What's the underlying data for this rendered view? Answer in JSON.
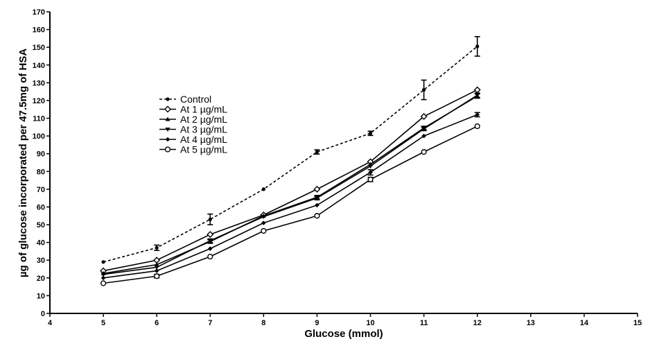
{
  "chart_data": {
    "type": "line",
    "title": "",
    "xlabel": "Glucose (mmol)",
    "ylabel": "µg of glucose incorporated per 47.5mg of HSA",
    "xlim": [
      4,
      15
    ],
    "ylim": [
      0,
      170
    ],
    "xticks": [
      4,
      5,
      6,
      7,
      8,
      9,
      10,
      11,
      12,
      13,
      14,
      15
    ],
    "yticks": [
      0,
      10,
      20,
      30,
      40,
      50,
      60,
      70,
      80,
      90,
      100,
      110,
      120,
      130,
      140,
      150,
      160,
      170
    ],
    "grid": false,
    "legend_position": "upper-left",
    "x": [
      5,
      6,
      7,
      8,
      9,
      10,
      11,
      12
    ],
    "series": [
      {
        "name": "Control",
        "marker": "dot",
        "line": "dashed",
        "values": [
          29,
          37,
          53,
          70,
          91,
          101.5,
          126,
          150.5
        ],
        "errors": [
          0.5,
          1.5,
          3,
          0.5,
          1.2,
          1.2,
          5.5,
          5.5
        ]
      },
      {
        "name": "At 1 µg/mL",
        "marker": "diamond-open",
        "line": "solid",
        "values": [
          24,
          30,
          44.5,
          55.5,
          70,
          85.5,
          111,
          126
        ],
        "errors": [
          0.5,
          0.5,
          0.5,
          0.5,
          0.5,
          0.5,
          0.5,
          0.5
        ]
      },
      {
        "name": "At 2 µg/mL",
        "marker": "triangle-up",
        "line": "solid",
        "values": [
          22.5,
          27.5,
          40.5,
          55,
          65.5,
          84,
          104.5,
          122.5
        ],
        "errors": [
          0.5,
          0.5,
          1,
          0.5,
          1,
          0.5,
          1,
          1.2
        ]
      },
      {
        "name": "At 3 µg/mL",
        "marker": "triangle-down",
        "line": "solid",
        "values": [
          22,
          26,
          41,
          54.5,
          65,
          83,
          104,
          123
        ],
        "errors": [
          0.5,
          0.5,
          1,
          0.5,
          1,
          0.5,
          1,
          1.2
        ]
      },
      {
        "name": "At 4 µg/mL",
        "marker": "diamond-filled",
        "line": "solid",
        "values": [
          20,
          24,
          36.5,
          51,
          61,
          79.5,
          100,
          112
        ],
        "errors": [
          0.5,
          0.5,
          0.5,
          0.5,
          0.5,
          1.5,
          0.5,
          1.2
        ]
      },
      {
        "name": "At 5 µg/mL",
        "marker": "circle-open",
        "line": "solid",
        "values": [
          17,
          21,
          32,
          46.5,
          55,
          75.5,
          91,
          105.5
        ],
        "errors": [
          0.5,
          1,
          0.5,
          0.5,
          0.5,
          1.2,
          0.5,
          0.5
        ]
      }
    ]
  }
}
